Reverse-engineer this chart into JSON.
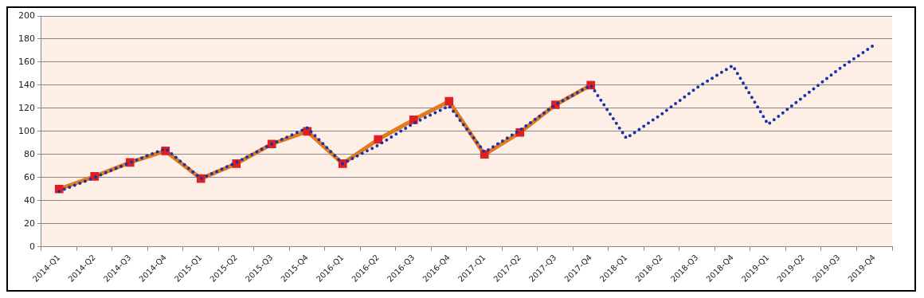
{
  "chart_data": {
    "type": "line",
    "categories": [
      "2014-Q1",
      "2014-Q2",
      "2014-Q3",
      "2014-Q4",
      "2015-Q1",
      "2015-Q2",
      "2015-Q3",
      "2015-Q4",
      "2016-Q1",
      "2016-Q2",
      "2016-Q3",
      "2016-Q4",
      "2017-Q1",
      "2017-Q2",
      "2017-Q3",
      "2017-Q4",
      "2018-Q1",
      "2018-Q2",
      "2018-Q3",
      "2018-Q4",
      "2019-Q1",
      "2019-Q2",
      "2019-Q3",
      "2019-Q4"
    ],
    "series": [
      {
        "color": "#e07b20",
        "marker": "square",
        "line_style": "solid",
        "values": [
          50,
          61,
          73,
          83,
          59,
          72,
          89,
          100,
          72,
          93,
          110,
          126,
          80,
          99,
          123,
          140,
          null,
          null,
          null,
          null,
          null,
          null,
          null,
          null
        ]
      },
      {
        "color": "#1a33a8",
        "marker": "none",
        "line_style": "dotted",
        "values": [
          48,
          60,
          73,
          85,
          59,
          73,
          89,
          103,
          72,
          88,
          107,
          122,
          82,
          101,
          123,
          140,
          94,
          115,
          138,
          157,
          106,
          130,
          154,
          175
        ]
      }
    ],
    "ylim": [
      0,
      200
    ],
    "yticks": [
      0,
      20,
      40,
      60,
      80,
      100,
      120,
      140,
      160,
      180,
      200
    ],
    "grid": "y",
    "legend": false
  }
}
